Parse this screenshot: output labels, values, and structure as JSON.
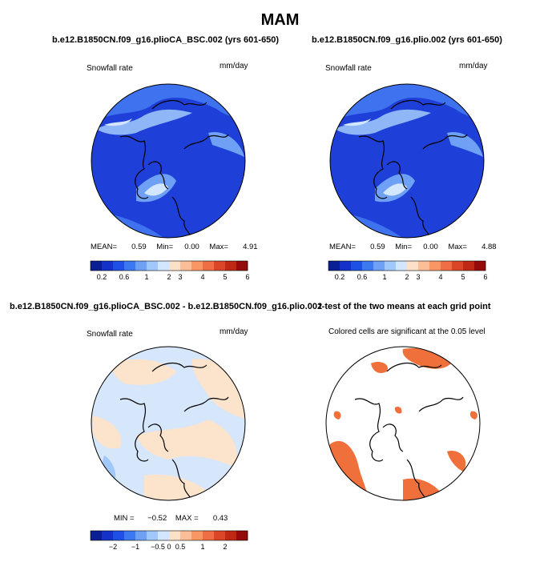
{
  "figure_title": "MAM",
  "panels": [
    {
      "title": "b.e12.B1850CN.f09_g16.plioCA_BSC.002 (yrs 601-650)",
      "left_label": "Snowfall rate",
      "right_label": "mm/day",
      "stats": {
        "mean_label": "MEAN=",
        "mean": "0.59",
        "min_label": "Min=",
        "min": "0.00",
        "max_label": "Max=",
        "max": "4.91"
      },
      "colorbar": {
        "colors": [
          "#0a1e96",
          "#1432c8",
          "#1e50e6",
          "#3c78f0",
          "#6ea0f5",
          "#a0c8fa",
          "#d2e6ff",
          "#fde0c8",
          "#fcbe96",
          "#f89664",
          "#f06e46",
          "#dc4628",
          "#be2814",
          "#960a0a"
        ],
        "tick_labels": [
          "0.2",
          "0.6",
          "1",
          "2",
          "3",
          "4",
          "5",
          "6"
        ],
        "tick_boundary_index": [
          1,
          3,
          5,
          7,
          8,
          10,
          12,
          14
        ]
      }
    },
    {
      "title": "b.e12.B1850CN.f09_g16.plio.002 (yrs 601-650)",
      "left_label": "Snowfall rate",
      "right_label": "mm/day",
      "stats": {
        "mean_label": "MEAN=",
        "mean": "0.59",
        "min_label": "Min=",
        "min": "0.00",
        "max_label": "Max=",
        "max": "4.88"
      },
      "colorbar": {
        "colors": [
          "#0a1e96",
          "#1432c8",
          "#1e50e6",
          "#3c78f0",
          "#6ea0f5",
          "#a0c8fa",
          "#d2e6ff",
          "#fde0c8",
          "#fcbe96",
          "#f89664",
          "#f06e46",
          "#dc4628",
          "#be2814",
          "#960a0a"
        ],
        "tick_labels": [
          "0.2",
          "0.6",
          "1",
          "2",
          "3",
          "4",
          "5",
          "6"
        ],
        "tick_boundary_index": [
          1,
          3,
          5,
          7,
          8,
          10,
          12,
          14
        ]
      }
    },
    {
      "title": "b.e12.B1850CN.f09_g16.plioCA_BSC.002 - b.e12.B1850CN.f09_g16.plio.002",
      "left_label": "Snowfall rate",
      "right_label": "mm/day",
      "stats": {
        "min_label": "MIN =",
        "min": "−0.52",
        "max_label": "MAX =",
        "max": "0.43"
      },
      "colorbar": {
        "colors": [
          "#0a1e96",
          "#1432c8",
          "#1e50e6",
          "#3c78f0",
          "#6ea0f5",
          "#a0c8fa",
          "#d2e6ff",
          "#fde0c8",
          "#fcbe96",
          "#f89664",
          "#f06e46",
          "#dc4628",
          "#be2814",
          "#960a0a"
        ],
        "tick_labels": [
          "−2",
          "−1",
          "−0.5",
          "0",
          "0.5",
          "1",
          "2"
        ],
        "tick_boundary_index": [
          2,
          4,
          6,
          7,
          8,
          10,
          12
        ]
      }
    },
    {
      "title": "t-test of the two means at each grid point",
      "left_label": "Colored cells are significant at the 0.05 level"
    }
  ],
  "colors": {
    "deep_blue": "#1f40d8",
    "mid_blue": "#3e72ee",
    "light_blue": "#8fb6f6",
    "diff_blue": "#d6e6fb",
    "diff_orange": "#fce3cc",
    "significant": "#f0703c"
  }
}
